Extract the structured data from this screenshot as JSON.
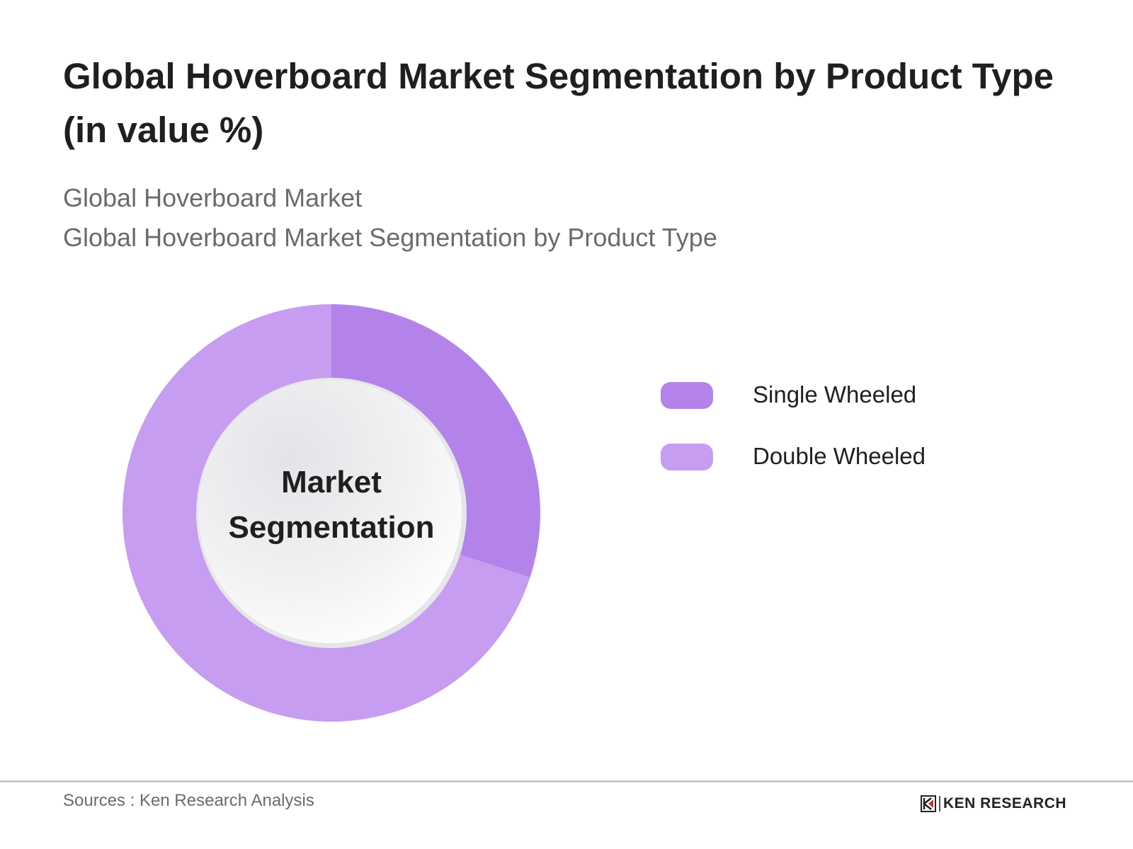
{
  "header": {
    "title": "Global Hoverboard Market Segmentation by Product Type (in value %)",
    "subtitle_1": "Global Hoverboard Market",
    "subtitle_2": "Global Hoverboard Market Segmentation by Product Type"
  },
  "chart": {
    "center_label_line1": "Market",
    "center_label_line2": "Segmentation"
  },
  "legend": {
    "items": [
      {
        "label": "Single Wheeled",
        "color": "#b383ea"
      },
      {
        "label": "Double Wheeled",
        "color": "#c69df0"
      }
    ]
  },
  "footer": {
    "sources": "Sources : Ken Research Analysis",
    "brand": "KEN RESEARCH",
    "brand_icon": "ken-research-logo-icon"
  },
  "chart_data": {
    "type": "pie",
    "subtype": "donut",
    "title": "Global Hoverboard Market Segmentation by Product Type (in value %)",
    "subtitle": [
      "Global Hoverboard Market",
      "Global Hoverboard Market Segmentation by Product Type"
    ],
    "categories": [
      "Single Wheeled",
      "Double Wheeled"
    ],
    "values": [
      30,
      70
    ],
    "unit": "%",
    "colors": [
      "#b383ea",
      "#c69df0"
    ],
    "center_text": "Market Segmentation",
    "start_angle": "12 o'clock, clockwise",
    "legend_position": "right",
    "source": "Sources : Ken Research Analysis"
  }
}
